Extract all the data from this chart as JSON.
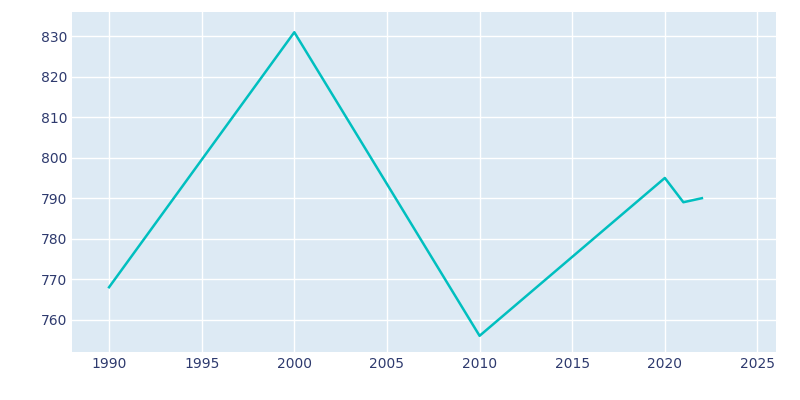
{
  "years": [
    1990,
    2000,
    2010,
    2020,
    2021,
    2022
  ],
  "population": [
    768,
    831,
    756,
    795,
    789,
    790
  ],
  "line_color": "#00BFBF",
  "plot_bg_color": "#DDEAF4",
  "fig_bg_color": "#ffffff",
  "grid_color": "#ffffff",
  "tick_color": "#2E3A6E",
  "xlim": [
    1988,
    2026
  ],
  "ylim": [
    752,
    836
  ],
  "xticks": [
    1990,
    1995,
    2000,
    2005,
    2010,
    2015,
    2020,
    2025
  ],
  "yticks": [
    760,
    770,
    780,
    790,
    800,
    810,
    820,
    830
  ],
  "line_width": 1.8
}
